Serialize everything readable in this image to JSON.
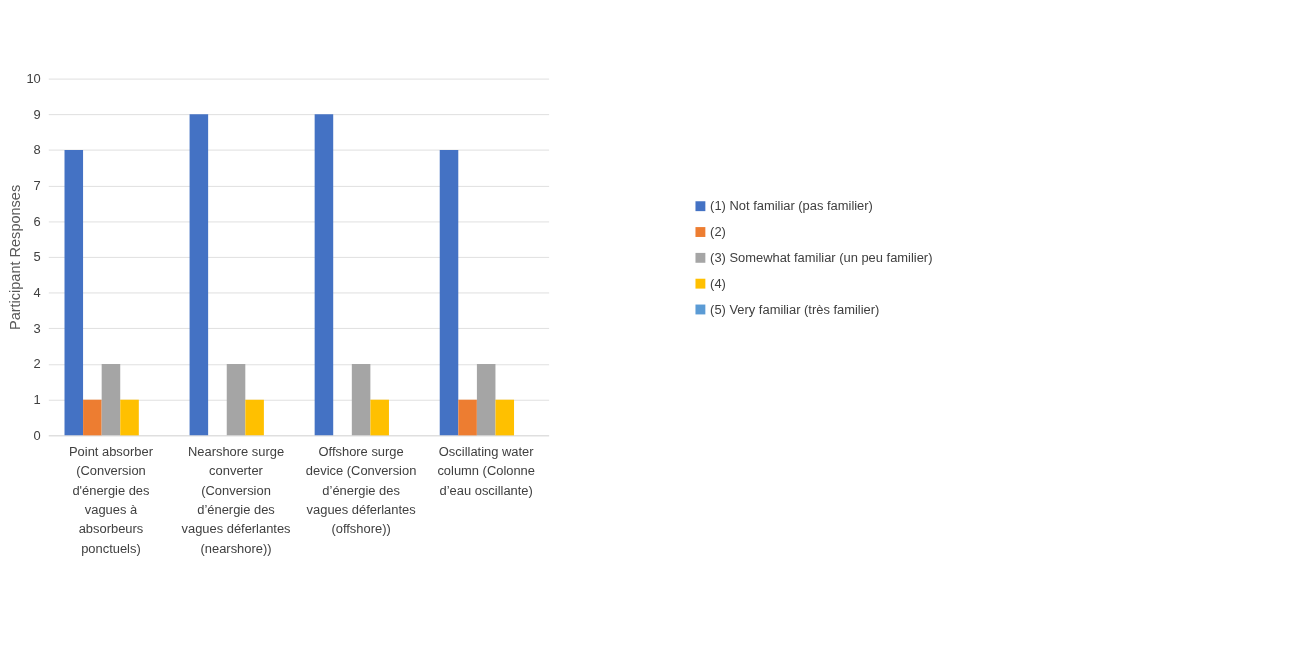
{
  "chart_data": {
    "type": "bar",
    "ylabel": "Participant Responses",
    "categories": [
      "Point absorber (Conversion d'énergie des vagues à absorbeurs ponctuels)",
      "Nearshore surge converter (Conversion d’énergie des vagues déferlantes (nearshore))",
      "Offshore surge device (Conversion d’énergie des vagues déferlantes (offshore))",
      "Oscillating water column (Colonne d’eau oscillante)"
    ],
    "series": [
      {
        "name": "(1) Not familiar (pas familier)",
        "color": "#4472c4",
        "values": [
          8,
          9,
          9,
          8
        ]
      },
      {
        "name": "(2)",
        "color": "#ed7d31",
        "values": [
          1,
          0,
          0,
          1
        ]
      },
      {
        "name": "(3) Somewhat familiar (un peu familier)",
        "color": "#a5a5a5",
        "values": [
          2,
          2,
          2,
          2
        ]
      },
      {
        "name": "(4)",
        "color": "#ffc000",
        "values": [
          1,
          1,
          1,
          1
        ]
      },
      {
        "name": "(5) Very familiar (très familier)",
        "color": "#5b9bd5",
        "values": [
          0,
          0,
          0,
          0
        ]
      }
    ],
    "ylim": [
      0,
      10
    ],
    "yticks": [
      0,
      1,
      2,
      3,
      4,
      5,
      6,
      7,
      8,
      9,
      10
    ],
    "grid": "y",
    "legend": "right"
  }
}
